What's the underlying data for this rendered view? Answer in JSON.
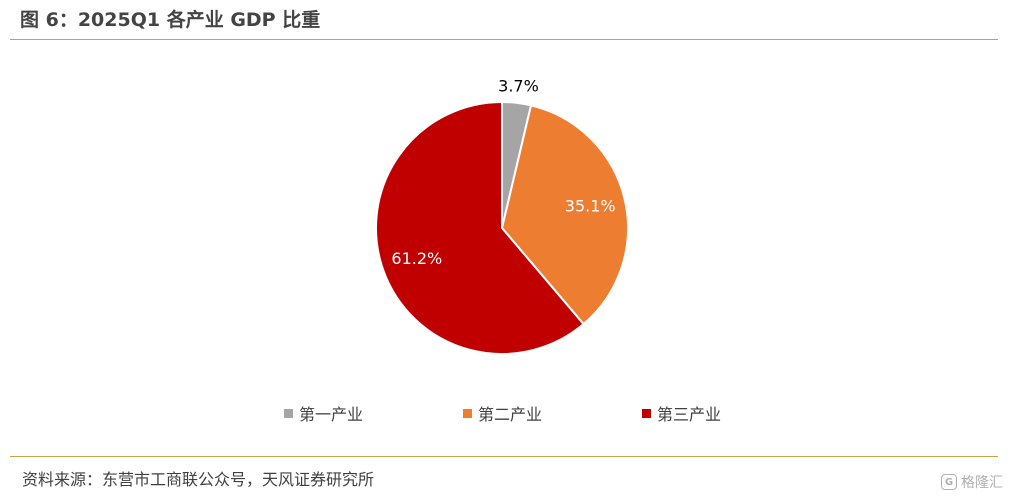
{
  "title": "图 6：2025Q1 各产业 GDP 比重",
  "source": "资料来源：东营市工商联公众号，天风证券研究所",
  "watermark": {
    "logo_text": "G",
    "text": "格隆汇"
  },
  "chart_data": {
    "type": "pie",
    "categories": [
      "第一产业",
      "第二产业",
      "第三产业"
    ],
    "values": [
      3.7,
      35.1,
      61.2
    ],
    "labels": [
      "3.7%",
      "35.1%",
      "61.2%"
    ],
    "colors": [
      "#a5a5a5",
      "#ed7d31",
      "#c00000"
    ],
    "label_colors": [
      "#000000",
      "#ffffff",
      "#ffffff"
    ],
    "start_angle": "12 o'clock",
    "direction": "clockwise",
    "legend_position": "bottom"
  }
}
